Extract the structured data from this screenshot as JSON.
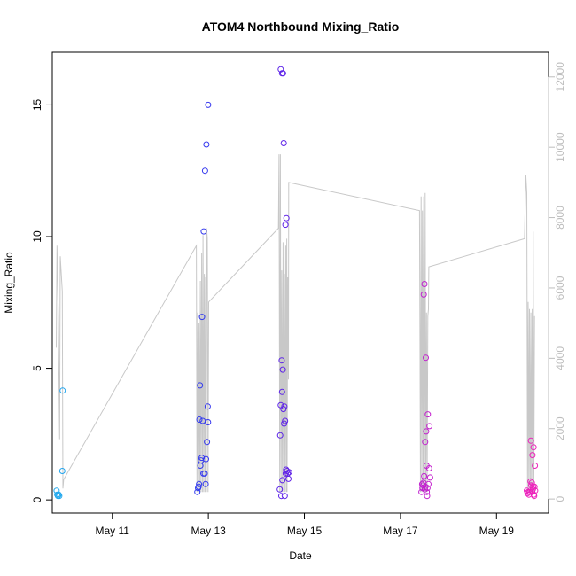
{
  "chart_data": {
    "type": "scatter",
    "title": "ATOM4 Northbound Mixing_Ratio",
    "xlabel": "Date",
    "ylabel": "Mixing_Ratio",
    "x_axis": {
      "type": "date",
      "ticks": [
        "May 11",
        "May 13",
        "May 15",
        "May 17",
        "May 19"
      ],
      "range": [
        "2016-05-09 18:00",
        "2016-05-20 02:00"
      ]
    },
    "y_axis": {
      "ticks": [
        "0",
        "5",
        "10",
        "15"
      ],
      "range": [
        -0.5,
        17
      ]
    },
    "y2_axis": {
      "ticks": [
        "0",
        "2000",
        "4000",
        "6000",
        "8000",
        "10000",
        "12000"
      ],
      "range": [
        -400,
        12700
      ],
      "color": "#bdbdbd"
    },
    "grid": false,
    "legend": "none",
    "colors": {
      "altitude_line": "#c8c8c8",
      "gradient": [
        "#22aaee",
        "#2255ee",
        "#4422ee",
        "#8822dd",
        "#cc22cc",
        "#ee22bb"
      ]
    },
    "points": [
      {
        "x": "2016-05-09 20:10",
        "y": 0.35
      },
      {
        "x": "2016-05-09 20:30",
        "y": 0.2
      },
      {
        "x": "2016-05-09 20:50",
        "y": 0.15
      },
      {
        "x": "2016-05-09 21:10",
        "y": 0.2
      },
      {
        "x": "2016-05-09 21:30",
        "y": 0.15
      },
      {
        "x": "2016-05-09 23:00",
        "y": 1.1
      },
      {
        "x": "2016-05-09 23:10",
        "y": 4.15
      },
      {
        "x": "2016-05-12 18:30",
        "y": 0.3
      },
      {
        "x": "2016-05-12 18:50",
        "y": 0.45
      },
      {
        "x": "2016-05-12 19:10",
        "y": 0.5
      },
      {
        "x": "2016-05-12 19:20",
        "y": 0.6
      },
      {
        "x": "2016-05-12 19:30",
        "y": 3.05
      },
      {
        "x": "2016-05-12 19:50",
        "y": 4.35
      },
      {
        "x": "2016-05-12 20:00",
        "y": 1.3
      },
      {
        "x": "2016-05-12 20:20",
        "y": 1.5
      },
      {
        "x": "2016-05-12 20:40",
        "y": 1.6
      },
      {
        "x": "2016-05-12 20:50",
        "y": 6.95
      },
      {
        "x": "2016-05-12 21:10",
        "y": 3.0
      },
      {
        "x": "2016-05-12 21:30",
        "y": 1.0
      },
      {
        "x": "2016-05-12 21:40",
        "y": 10.2
      },
      {
        "x": "2016-05-12 22:10",
        "y": 1.0
      },
      {
        "x": "2016-05-12 22:20",
        "y": 12.5
      },
      {
        "x": "2016-05-12 22:40",
        "y": 0.6
      },
      {
        "x": "2016-05-12 22:50",
        "y": 1.55
      },
      {
        "x": "2016-05-12 23:00",
        "y": 13.5
      },
      {
        "x": "2016-05-12 23:20",
        "y": 2.2
      },
      {
        "x": "2016-05-12 23:40",
        "y": 3.55
      },
      {
        "x": "2016-05-12 23:50",
        "y": 2.95
      },
      {
        "x": "2016-05-12 23:55",
        "y": 15.0
      },
      {
        "x": "2016-05-14 11:40",
        "y": 0.4
      },
      {
        "x": "2016-05-14 11:55",
        "y": 2.45
      },
      {
        "x": "2016-05-14 12:10",
        "y": 3.6
      },
      {
        "x": "2016-05-14 12:10",
        "y": 16.35
      },
      {
        "x": "2016-05-14 12:30",
        "y": 0.15
      },
      {
        "x": "2016-05-14 12:40",
        "y": 5.3
      },
      {
        "x": "2016-05-14 12:50",
        "y": 4.1
      },
      {
        "x": "2016-05-14 12:50",
        "y": 16.2
      },
      {
        "x": "2016-05-14 13:00",
        "y": 0.75
      },
      {
        "x": "2016-05-14 13:10",
        "y": 4.95
      },
      {
        "x": "2016-05-14 13:20",
        "y": 16.2
      },
      {
        "x": "2016-05-14 13:30",
        "y": 3.45
      },
      {
        "x": "2016-05-14 13:40",
        "y": 13.55
      },
      {
        "x": "2016-05-14 13:50",
        "y": 2.9
      },
      {
        "x": "2016-05-14 14:00",
        "y": 3.55
      },
      {
        "x": "2016-05-14 14:10",
        "y": 0.15
      },
      {
        "x": "2016-05-14 14:20",
        "y": 3.0
      },
      {
        "x": "2016-05-14 14:30",
        "y": 10.45
      },
      {
        "x": "2016-05-14 14:40",
        "y": 1.0
      },
      {
        "x": "2016-05-14 14:50",
        "y": 1.15
      },
      {
        "x": "2016-05-14 15:00",
        "y": 10.7
      },
      {
        "x": "2016-05-14 15:20",
        "y": 1.1
      },
      {
        "x": "2016-05-14 15:40",
        "y": 1.0
      },
      {
        "x": "2016-05-14 16:00",
        "y": 0.8
      },
      {
        "x": "2016-05-14 16:20",
        "y": 1.05
      },
      {
        "x": "2016-05-17 10:30",
        "y": 0.3
      },
      {
        "x": "2016-05-17 10:50",
        "y": 0.6
      },
      {
        "x": "2016-05-17 11:00",
        "y": 0.45
      },
      {
        "x": "2016-05-17 11:20",
        "y": 0.55
      },
      {
        "x": "2016-05-17 11:30",
        "y": 0.65
      },
      {
        "x": "2016-05-17 11:40",
        "y": 7.8
      },
      {
        "x": "2016-05-17 11:50",
        "y": 0.9
      },
      {
        "x": "2016-05-17 12:00",
        "y": 8.2
      },
      {
        "x": "2016-05-17 12:10",
        "y": 0.4
      },
      {
        "x": "2016-05-17 12:20",
        "y": 2.2
      },
      {
        "x": "2016-05-17 12:30",
        "y": 0.5
      },
      {
        "x": "2016-05-17 12:40",
        "y": 5.4
      },
      {
        "x": "2016-05-17 12:50",
        "y": 2.6
      },
      {
        "x": "2016-05-17 13:00",
        "y": 1.3
      },
      {
        "x": "2016-05-17 13:10",
        "y": 0.3
      },
      {
        "x": "2016-05-17 13:20",
        "y": 0.15
      },
      {
        "x": "2016-05-17 13:30",
        "y": 0.45
      },
      {
        "x": "2016-05-17 13:40",
        "y": 3.25
      },
      {
        "x": "2016-05-17 14:00",
        "y": 0.6
      },
      {
        "x": "2016-05-17 14:20",
        "y": 1.2
      },
      {
        "x": "2016-05-17 14:30",
        "y": 2.8
      },
      {
        "x": "2016-05-17 14:50",
        "y": 0.85
      },
      {
        "x": "2016-05-19 15:10",
        "y": 0.35
      },
      {
        "x": "2016-05-19 15:30",
        "y": 0.25
      },
      {
        "x": "2016-05-19 15:50",
        "y": 0.3
      },
      {
        "x": "2016-05-19 16:10",
        "y": 0.2
      },
      {
        "x": "2016-05-19 16:30",
        "y": 0.3
      },
      {
        "x": "2016-05-19 16:40",
        "y": 0.3
      },
      {
        "x": "2016-05-19 17:00",
        "y": 0.7
      },
      {
        "x": "2016-05-19 17:10",
        "y": 2.25
      },
      {
        "x": "2016-05-19 17:20",
        "y": 0.55
      },
      {
        "x": "2016-05-19 17:40",
        "y": 0.65
      },
      {
        "x": "2016-05-19 17:50",
        "y": 0.3
      },
      {
        "x": "2016-05-19 18:00",
        "y": 1.7
      },
      {
        "x": "2016-05-19 18:10",
        "y": 0.4
      },
      {
        "x": "2016-05-19 18:20",
        "y": 0.5
      },
      {
        "x": "2016-05-19 18:30",
        "y": 2.0
      },
      {
        "x": "2016-05-19 18:40",
        "y": 0.2
      },
      {
        "x": "2016-05-19 18:50",
        "y": 0.15
      },
      {
        "x": "2016-05-19 19:00",
        "y": 0.5
      },
      {
        "x": "2016-05-19 19:10",
        "y": 1.3
      },
      {
        "x": "2016-05-19 19:20",
        "y": 0.35
      }
    ],
    "line": [
      {
        "x": "2016-05-09 20:00",
        "y2": 4300
      },
      {
        "x": "2016-05-09 20:20",
        "y2": 7200
      },
      {
        "x": "2016-05-09 21:00",
        "y2": 5200
      },
      {
        "x": "2016-05-09 21:40",
        "y2": 1700
      },
      {
        "x": "2016-05-09 22:00",
        "y2": 6900
      },
      {
        "x": "2016-05-09 23:00",
        "y2": 5900
      },
      {
        "x": "2016-05-09 23:20",
        "y2": 300
      },
      {
        "x": "2016-05-09 23:40",
        "y2": 550
      },
      {
        "x": "2016-05-12 18:00",
        "y2": 7200
      },
      {
        "x": "2016-05-12 18:20",
        "y2": 200
      },
      {
        "x": "2016-05-12 18:40",
        "y2": 5300
      },
      {
        "x": "2016-05-12 19:00",
        "y2": 200
      },
      {
        "x": "2016-05-12 19:20",
        "y2": 5000
      },
      {
        "x": "2016-05-12 19:40",
        "y2": 200
      },
      {
        "x": "2016-05-12 20:00",
        "y2": 6200
      },
      {
        "x": "2016-05-12 20:20",
        "y2": 200
      },
      {
        "x": "2016-05-12 20:40",
        "y2": 7000
      },
      {
        "x": "2016-05-12 21:00",
        "y2": 200
      },
      {
        "x": "2016-05-12 21:20",
        "y2": 7500
      },
      {
        "x": "2016-05-12 21:40",
        "y2": 200
      },
      {
        "x": "2016-05-12 22:00",
        "y2": 6400
      },
      {
        "x": "2016-05-12 22:20",
        "y2": 200
      },
      {
        "x": "2016-05-12 22:40",
        "y2": 6300
      },
      {
        "x": "2016-05-12 23:00",
        "y2": 200
      },
      {
        "x": "2016-05-12 23:10",
        "y2": 7700
      },
      {
        "x": "2016-05-12 23:30",
        "y2": 7400
      },
      {
        "x": "2016-05-12 23:50",
        "y2": 200
      },
      {
        "x": "2016-05-13 00:10",
        "y2": 5600
      },
      {
        "x": "2016-05-14 11:00",
        "y2": 7700
      },
      {
        "x": "2016-05-14 11:20",
        "y2": 9800
      },
      {
        "x": "2016-05-14 11:40",
        "y2": 200
      },
      {
        "x": "2016-05-14 12:00",
        "y2": 9800
      },
      {
        "x": "2016-05-14 12:20",
        "y2": 200
      },
      {
        "x": "2016-05-14 12:40",
        "y2": 6500
      },
      {
        "x": "2016-05-14 13:00",
        "y2": 200
      },
      {
        "x": "2016-05-14 13:20",
        "y2": 7300
      },
      {
        "x": "2016-05-14 13:40",
        "y2": 200
      },
      {
        "x": "2016-05-14 14:00",
        "y2": 6400
      },
      {
        "x": "2016-05-14 14:20",
        "y2": 200
      },
      {
        "x": "2016-05-14 14:40",
        "y2": 7200
      },
      {
        "x": "2016-05-14 15:00",
        "y2": 200
      },
      {
        "x": "2016-05-14 15:10",
        "y2": 7400
      },
      {
        "x": "2016-05-14 15:20",
        "y2": 200
      },
      {
        "x": "2016-05-14 15:40",
        "y2": 6300
      },
      {
        "x": "2016-05-14 16:00",
        "y2": 3400
      },
      {
        "x": "2016-05-14 16:10",
        "y2": 9000
      },
      {
        "x": "2016-05-17 09:30",
        "y2": 8200
      },
      {
        "x": "2016-05-17 10:00",
        "y2": 200
      },
      {
        "x": "2016-05-17 10:20",
        "y2": 8600
      },
      {
        "x": "2016-05-17 10:40",
        "y2": 200
      },
      {
        "x": "2016-05-17 11:00",
        "y2": 8200
      },
      {
        "x": "2016-05-17 11:20",
        "y2": 200
      },
      {
        "x": "2016-05-17 11:40",
        "y2": 8600
      },
      {
        "x": "2016-05-17 12:00",
        "y2": 200
      },
      {
        "x": "2016-05-17 12:20",
        "y2": 8700
      },
      {
        "x": "2016-05-17 12:40",
        "y2": 200
      },
      {
        "x": "2016-05-17 13:00",
        "y2": 5300
      },
      {
        "x": "2016-05-17 13:20",
        "y2": 200
      },
      {
        "x": "2016-05-17 13:40",
        "y2": 5200
      },
      {
        "x": "2016-05-17 14:00",
        "y2": 5400
      },
      {
        "x": "2016-05-17 14:10",
        "y2": 6600
      },
      {
        "x": "2016-05-19 14:00",
        "y2": 7400
      },
      {
        "x": "2016-05-19 14:40",
        "y2": 9200
      },
      {
        "x": "2016-05-19 15:10",
        "y2": 8700
      },
      {
        "x": "2016-05-19 15:30",
        "y2": 200
      },
      {
        "x": "2016-05-19 15:50",
        "y2": 5600
      },
      {
        "x": "2016-05-19 16:10",
        "y2": 200
      },
      {
        "x": "2016-05-19 16:30",
        "y2": 5400
      },
      {
        "x": "2016-05-19 16:50",
        "y2": 200
      },
      {
        "x": "2016-05-19 17:10",
        "y2": 5300
      },
      {
        "x": "2016-05-19 17:30",
        "y2": 200
      },
      {
        "x": "2016-05-19 17:50",
        "y2": 5400
      },
      {
        "x": "2016-05-19 18:10",
        "y2": 200
      },
      {
        "x": "2016-05-19 18:20",
        "y2": 7600
      },
      {
        "x": "2016-05-19 18:40",
        "y2": 200
      },
      {
        "x": "2016-05-19 19:00",
        "y2": 5200
      }
    ]
  }
}
